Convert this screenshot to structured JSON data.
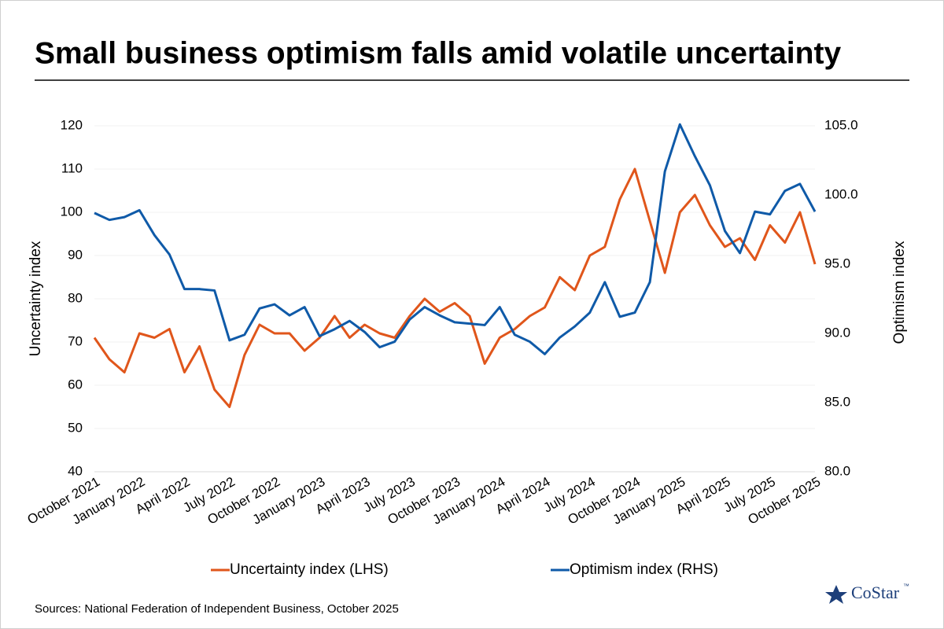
{
  "chart_data": {
    "type": "line",
    "title": "Small business optimism falls amid volatile uncertainty",
    "y_label": "Uncertainty index",
    "y2_label": "Optimism index",
    "source": "Sources: National Federation of Independent Business, October 2025",
    "logo_text": "CoStar",
    "logo_mark": "™",
    "categories": [
      "October 2021",
      null,
      null,
      "January 2022",
      null,
      null,
      "April 2022",
      null,
      null,
      "July 2022",
      null,
      null,
      "October 2022",
      null,
      null,
      "January 2023",
      null,
      null,
      "April 2023",
      null,
      null,
      "July 2023",
      null,
      null,
      "October 2023",
      null,
      null,
      "January 2024",
      null,
      null,
      "April 2024",
      null,
      null,
      "July 2024",
      null,
      null,
      "October 2024",
      null,
      null,
      "January 2025",
      null,
      null,
      "April 2025",
      null,
      null,
      "July 2025",
      null,
      null,
      "October 2025"
    ],
    "series": [
      {
        "name": "Uncertainty index (LHS)",
        "color": "#e0561b",
        "axis": "y",
        "values": [
          71,
          66,
          63,
          72,
          71,
          73,
          63,
          69,
          59,
          55,
          67,
          74,
          72,
          72,
          68,
          71,
          76,
          71,
          74,
          72,
          71,
          76,
          80,
          77,
          79,
          76,
          65,
          71,
          73,
          76,
          78,
          85,
          82,
          90,
          92,
          103,
          110,
          98,
          86,
          100,
          104,
          97,
          92,
          94,
          89,
          97,
          93,
          100,
          88
        ]
      },
      {
        "name": "Optimism index (RHS)",
        "color": "#0f5aa8",
        "axis": "y2",
        "values": [
          98.7,
          98.2,
          98.4,
          98.9,
          97.1,
          95.7,
          93.2,
          93.2,
          93.1,
          89.5,
          89.9,
          91.8,
          92.1,
          91.3,
          91.9,
          89.8,
          90.3,
          90.9,
          90.1,
          89.0,
          89.4,
          91.0,
          91.9,
          91.3,
          90.8,
          90.7,
          90.6,
          91.9,
          89.9,
          89.4,
          88.5,
          89.7,
          90.5,
          91.5,
          93.7,
          91.2,
          91.5,
          93.7,
          101.7,
          105.1,
          102.8,
          100.7,
          97.4,
          95.8,
          98.8,
          98.6,
          100.3,
          100.8,
          98.8
        ]
      }
    ],
    "ylim": [
      40,
      120
    ],
    "yticks": [
      40,
      50,
      60,
      70,
      80,
      90,
      100,
      110,
      120
    ],
    "y2lim": [
      80,
      105
    ],
    "y2ticks": [
      {
        "value": 80,
        "label": "80.0"
      },
      {
        "value": 85,
        "label": "85.0"
      },
      {
        "value": 90,
        "label": "90.0"
      },
      {
        "value": 95,
        "label": "95.0"
      },
      {
        "value": 100,
        "label": "100.0"
      },
      {
        "value": 105,
        "label": "105.0"
      }
    ],
    "grid": true,
    "legend": "bottom"
  }
}
